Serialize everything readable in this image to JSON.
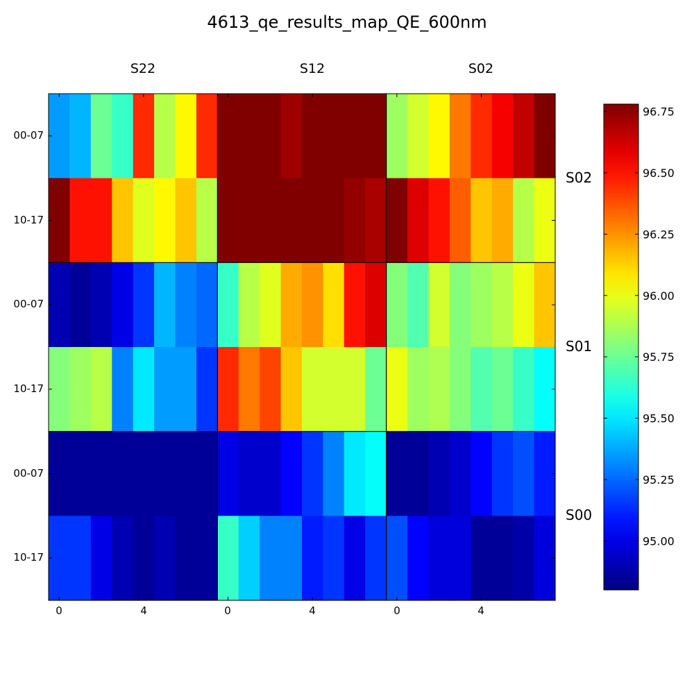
{
  "chart_data": {
    "type": "heatmap",
    "title": "4613_qe_results_map_QE_600nm",
    "column_groups": [
      "S22",
      "S12",
      "S02"
    ],
    "row_groups": [
      "S02",
      "S01",
      "S00"
    ],
    "row_tick_labels": [
      "00-07",
      "10-17",
      "00-07",
      "10-17",
      "00-07",
      "10-17"
    ],
    "x_tick_labels": [
      "0",
      "4"
    ],
    "colorbar": {
      "min": 94.8,
      "max": 96.78,
      "ticks": [
        "95.00",
        "95.25",
        "95.50",
        "95.75",
        "96.00",
        "96.25",
        "96.50",
        "96.75"
      ],
      "colormap": "jet"
    },
    "values": [
      [
        95.35,
        95.4,
        95.75,
        95.65,
        96.45,
        95.9,
        96.05,
        96.45,
        96.78,
        96.78,
        96.78,
        96.72,
        96.78,
        96.78,
        96.78,
        96.78,
        95.85,
        95.95,
        96.05,
        96.3,
        96.45,
        96.55,
        96.65,
        96.78
      ],
      [
        96.78,
        96.5,
        96.5,
        96.15,
        95.98,
        96.05,
        96.15,
        95.9,
        96.78,
        96.78,
        96.78,
        96.78,
        96.78,
        96.78,
        96.74,
        96.7,
        96.78,
        96.6,
        96.5,
        96.35,
        96.15,
        96.2,
        95.9,
        96.0
      ],
      [
        94.9,
        94.85,
        94.9,
        95.0,
        95.15,
        95.4,
        95.3,
        95.25,
        95.65,
        95.9,
        95.98,
        96.2,
        96.25,
        96.1,
        96.5,
        96.6,
        95.8,
        95.7,
        95.95,
        95.8,
        95.85,
        95.9,
        96.0,
        96.15
      ],
      [
        95.8,
        95.85,
        95.9,
        95.3,
        95.5,
        95.35,
        95.35,
        95.15,
        96.45,
        96.3,
        96.4,
        96.15,
        95.95,
        95.95,
        95.95,
        95.75,
        96.0,
        95.85,
        95.88,
        95.8,
        95.7,
        95.75,
        95.65,
        95.55
      ],
      [
        94.85,
        94.85,
        94.85,
        94.85,
        94.85,
        94.85,
        94.85,
        94.85,
        95.0,
        94.95,
        94.95,
        95.05,
        95.15,
        95.3,
        95.5,
        95.55,
        94.85,
        94.85,
        94.9,
        94.95,
        95.05,
        95.15,
        95.2,
        95.1
      ],
      [
        95.15,
        95.15,
        95.0,
        94.9,
        94.85,
        94.9,
        94.85,
        94.85,
        95.65,
        95.45,
        95.3,
        95.3,
        95.1,
        95.15,
        95.0,
        95.15,
        95.2,
        95.05,
        94.98,
        94.98,
        94.85,
        94.85,
        94.88,
        94.98
      ]
    ]
  }
}
